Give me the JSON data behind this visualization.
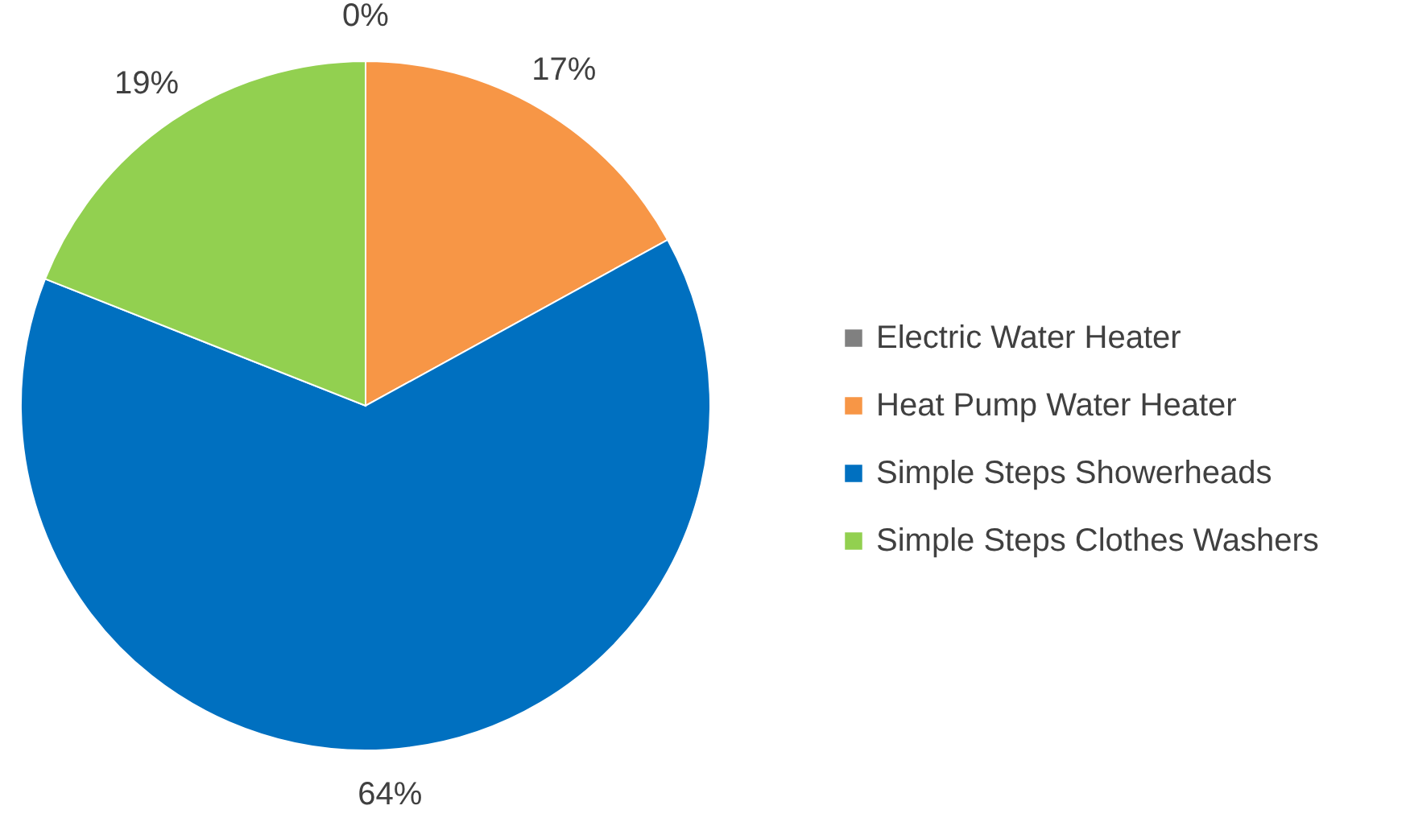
{
  "chart_data": {
    "type": "pie",
    "categories": [
      "Electric Water Heater",
      "Heat Pump Water Heater",
      "Simple Steps Showerheads",
      "Simple Steps Clothes Washers"
    ],
    "values": [
      0,
      17,
      64,
      19
    ],
    "colors": [
      "#808080",
      "#f79646",
      "#0070c0",
      "#92d050"
    ],
    "value_labels": [
      "0%",
      "17%",
      "64%",
      "19%"
    ],
    "legend": "right"
  }
}
